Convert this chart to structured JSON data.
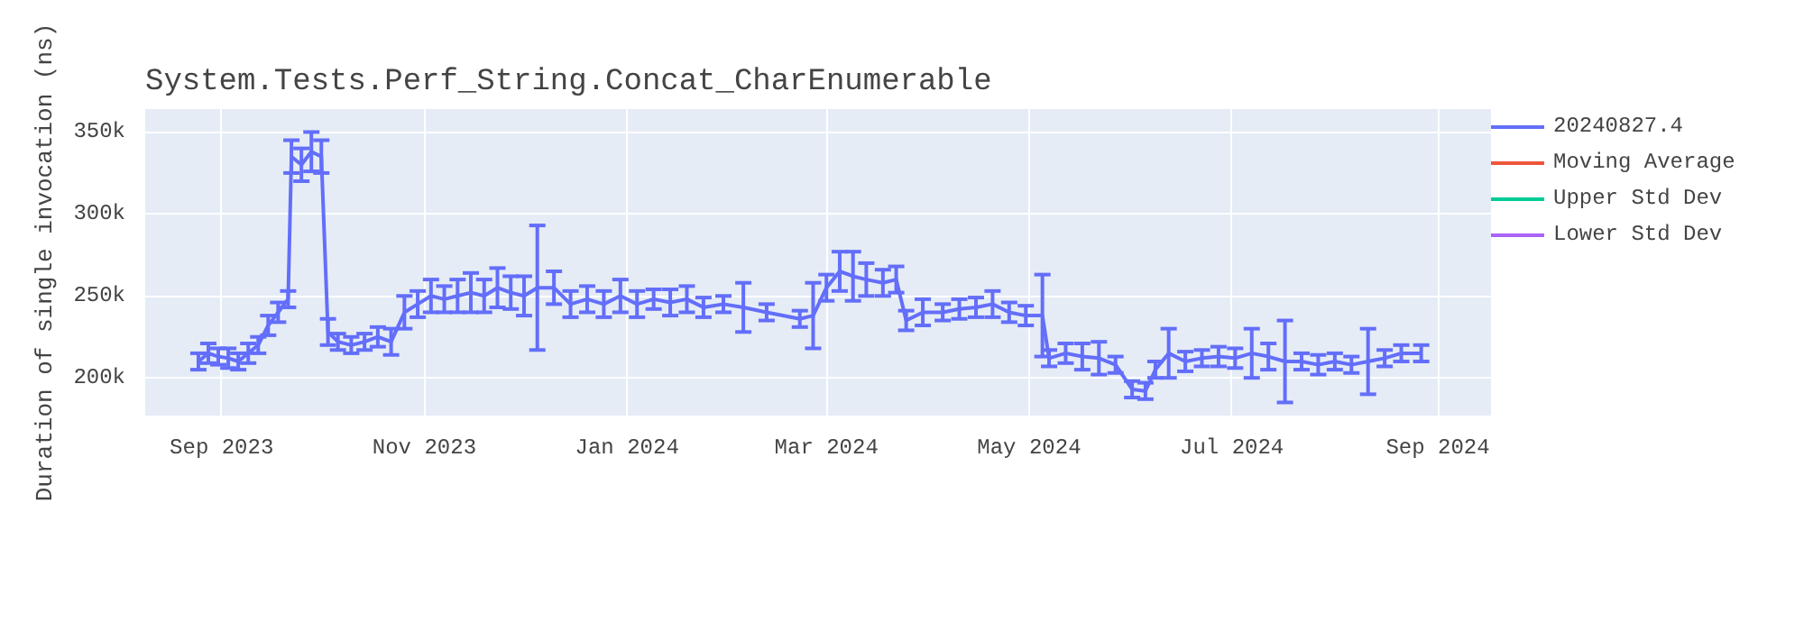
{
  "chart_data": {
    "type": "line",
    "title": "System.Tests.Perf_String.Concat_CharEnumerable",
    "ylabel": "Duration of single invocation (ns)",
    "xlim": [
      "2023-08-09",
      "2024-09-17"
    ],
    "ylim": [
      177000,
      364000
    ],
    "xticks": [
      {
        "value": "2023-09-01",
        "label": "Sep 2023"
      },
      {
        "value": "2023-11-01",
        "label": "Nov 2023"
      },
      {
        "value": "2024-01-01",
        "label": "Jan 2024"
      },
      {
        "value": "2024-03-01",
        "label": "Mar 2024"
      },
      {
        "value": "2024-05-01",
        "label": "May 2024"
      },
      {
        "value": "2024-07-01",
        "label": "Jul 2024"
      },
      {
        "value": "2024-09-01",
        "label": "Sep 2024"
      }
    ],
    "yticks": [
      {
        "value": 200000,
        "label": "200k"
      },
      {
        "value": 250000,
        "label": "250k"
      },
      {
        "value": 300000,
        "label": "300k"
      },
      {
        "value": 350000,
        "label": "350k"
      }
    ],
    "grid": true,
    "legend": "right",
    "marker": "none",
    "line_style": "solid",
    "series": [
      {
        "name": "20240827.4",
        "color": "#636efa",
        "x": [
          "2023-08-25",
          "2023-08-28",
          "2023-08-31",
          "2023-09-03",
          "2023-09-06",
          "2023-09-09",
          "2023-09-12",
          "2023-09-15",
          "2023-09-18",
          "2023-09-21",
          "2023-09-22",
          "2023-09-25",
          "2023-09-28",
          "2023-10-01",
          "2023-10-03",
          "2023-10-06",
          "2023-10-10",
          "2023-10-14",
          "2023-10-18",
          "2023-10-22",
          "2023-10-26",
          "2023-10-30",
          "2023-11-03",
          "2023-11-07",
          "2023-11-11",
          "2023-11-15",
          "2023-11-19",
          "2023-11-23",
          "2023-11-27",
          "2023-12-01",
          "2023-12-05",
          "2023-12-10",
          "2023-12-15",
          "2023-12-20",
          "2023-12-25",
          "2023-12-30",
          "2024-01-04",
          "2024-01-09",
          "2024-01-14",
          "2024-01-19",
          "2024-01-24",
          "2024-01-30",
          "2024-02-05",
          "2024-02-12",
          "2024-02-22",
          "2024-02-26",
          "2024-03-01",
          "2024-03-05",
          "2024-03-09",
          "2024-03-13",
          "2024-03-18",
          "2024-03-22",
          "2024-03-25",
          "2024-03-30",
          "2024-04-05",
          "2024-04-10",
          "2024-04-15",
          "2024-04-20",
          "2024-04-25",
          "2024-04-30",
          "2024-05-05",
          "2024-05-07",
          "2024-05-12",
          "2024-05-17",
          "2024-05-22",
          "2024-05-27",
          "2024-06-01",
          "2024-06-05",
          "2024-06-08",
          "2024-06-12",
          "2024-06-17",
          "2024-06-22",
          "2024-06-27",
          "2024-07-02",
          "2024-07-07",
          "2024-07-12",
          "2024-07-17",
          "2024-07-22",
          "2024-07-27",
          "2024-08-01",
          "2024-08-06",
          "2024-08-11",
          "2024-08-16",
          "2024-08-21",
          "2024-08-27"
        ],
        "values": [
          210000,
          215000,
          213000,
          212000,
          210000,
          215000,
          220000,
          232000,
          240000,
          248000,
          335000,
          330000,
          338000,
          335000,
          228000,
          222000,
          220000,
          222000,
          225000,
          222000,
          240000,
          245000,
          250000,
          248000,
          250000,
          252000,
          250000,
          255000,
          252000,
          250000,
          255000,
          255000,
          245000,
          248000,
          245000,
          250000,
          245000,
          248000,
          246000,
          248000,
          243000,
          245000,
          243000,
          240000,
          236000,
          238000,
          255000,
          265000,
          262000,
          260000,
          258000,
          260000,
          235000,
          240000,
          240000,
          242000,
          243000,
          245000,
          240000,
          238000,
          238000,
          212000,
          215000,
          213000,
          212000,
          208000,
          193000,
          192000,
          205000,
          215000,
          210000,
          212000,
          213000,
          212000,
          215000,
          213000,
          210000,
          210000,
          208000,
          210000,
          208000,
          210000,
          212000,
          215000,
          215000
        ],
        "errors": [
          5000,
          6000,
          5000,
          6000,
          5000,
          6000,
          5000,
          6000,
          6000,
          5000,
          10000,
          10000,
          12000,
          10000,
          8000,
          5000,
          5000,
          5000,
          6000,
          8000,
          10000,
          8000,
          10000,
          8000,
          10000,
          12000,
          10000,
          12000,
          10000,
          12000,
          38000,
          10000,
          8000,
          8000,
          8000,
          10000,
          8000,
          6000,
          8000,
          8000,
          6000,
          5000,
          15000,
          5000,
          5000,
          20000,
          8000,
          12000,
          15000,
          10000,
          8000,
          8000,
          6000,
          8000,
          5000,
          6000,
          6000,
          8000,
          6000,
          6000,
          25000,
          5000,
          6000,
          8000,
          10000,
          5000,
          5000,
          5000,
          5000,
          15000,
          6000,
          5000,
          6000,
          6000,
          15000,
          8000,
          25000,
          5000,
          6000,
          5000,
          5000,
          20000,
          5000,
          5000,
          5000
        ]
      },
      {
        "name": "Moving Average",
        "color": "#ef553b"
      },
      {
        "name": "Upper Std Dev",
        "color": "#00cc96"
      },
      {
        "name": "Lower Std Dev",
        "color": "#ab63fa"
      }
    ]
  }
}
